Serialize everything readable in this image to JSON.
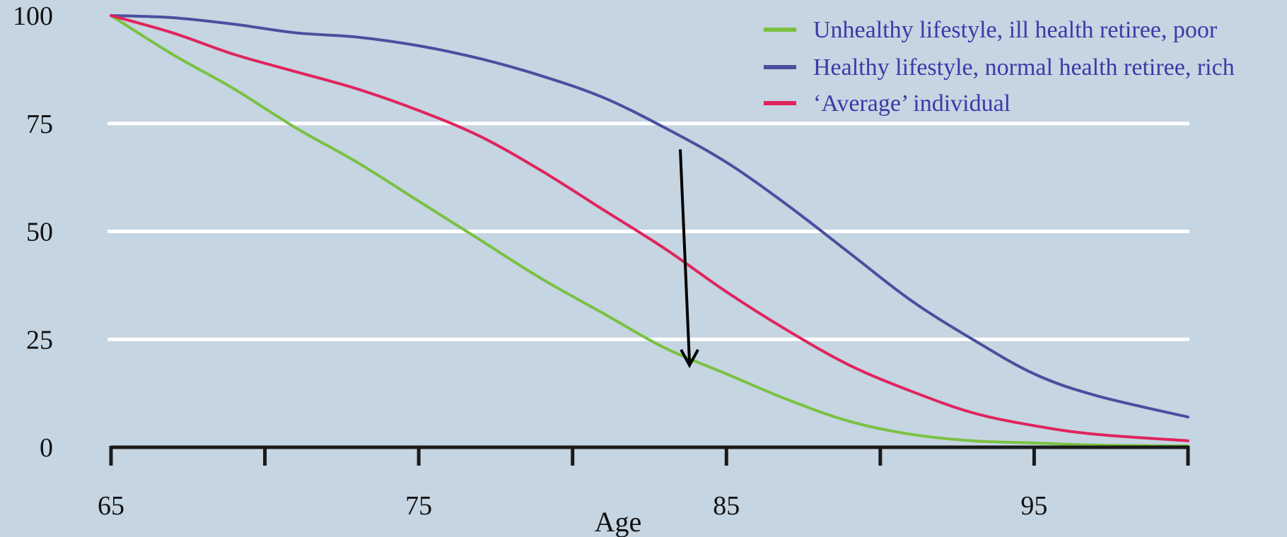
{
  "chart_data": {
    "type": "line",
    "xlabel": "Age",
    "ylabel": "",
    "xlim": [
      65,
      100
    ],
    "ylim": [
      0,
      100
    ],
    "x_tick_labels": [
      65,
      75,
      85,
      95
    ],
    "x_minor_ticks": [
      65,
      70,
      75,
      80,
      85,
      90,
      95,
      100
    ],
    "y_tick_labels": [
      0,
      25,
      50,
      75,
      100
    ],
    "gridlines_y": [
      25,
      50,
      75
    ],
    "grid": true,
    "legend": "top-right",
    "annotation": {
      "type": "arrow",
      "from": [
        83.5,
        69
      ],
      "to": [
        83.8,
        19
      ]
    },
    "series": [
      {
        "name": "Unhealthy lifestyle, ill health retiree, poor",
        "color": "#7ac142",
        "x": [
          65,
          67,
          69,
          71,
          73,
          75,
          77,
          79,
          81,
          83,
          85,
          87,
          89,
          91,
          93,
          95,
          97,
          100
        ],
        "y": [
          100,
          91,
          83,
          74,
          66,
          57,
          48,
          39,
          31,
          23,
          17,
          11,
          6,
          3,
          1.5,
          1,
          0.5,
          0.3
        ]
      },
      {
        "name": "Healthy lifestyle, normal health retiree, rich",
        "color": "#4a4f9e",
        "x": [
          65,
          67,
          69,
          71,
          73,
          75,
          77,
          79,
          81,
          83,
          85,
          87,
          89,
          91,
          93,
          95,
          97,
          100
        ],
        "y": [
          100,
          99.5,
          98,
          96,
          95,
          93,
          90,
          86,
          81,
          74,
          66,
          56,
          45,
          34,
          25,
          17,
          12,
          7
        ]
      },
      {
        "name": "‘Average’ individual",
        "color": "#e0245e",
        "x": [
          65,
          67,
          69,
          71,
          73,
          75,
          77,
          79,
          81,
          83,
          85,
          87,
          89,
          91,
          93,
          95,
          97,
          100
        ],
        "y": [
          100,
          96,
          91,
          87,
          83,
          78,
          72,
          64,
          55,
          46,
          36,
          27,
          19,
          13,
          8,
          5,
          3,
          1.5
        ]
      }
    ]
  }
}
